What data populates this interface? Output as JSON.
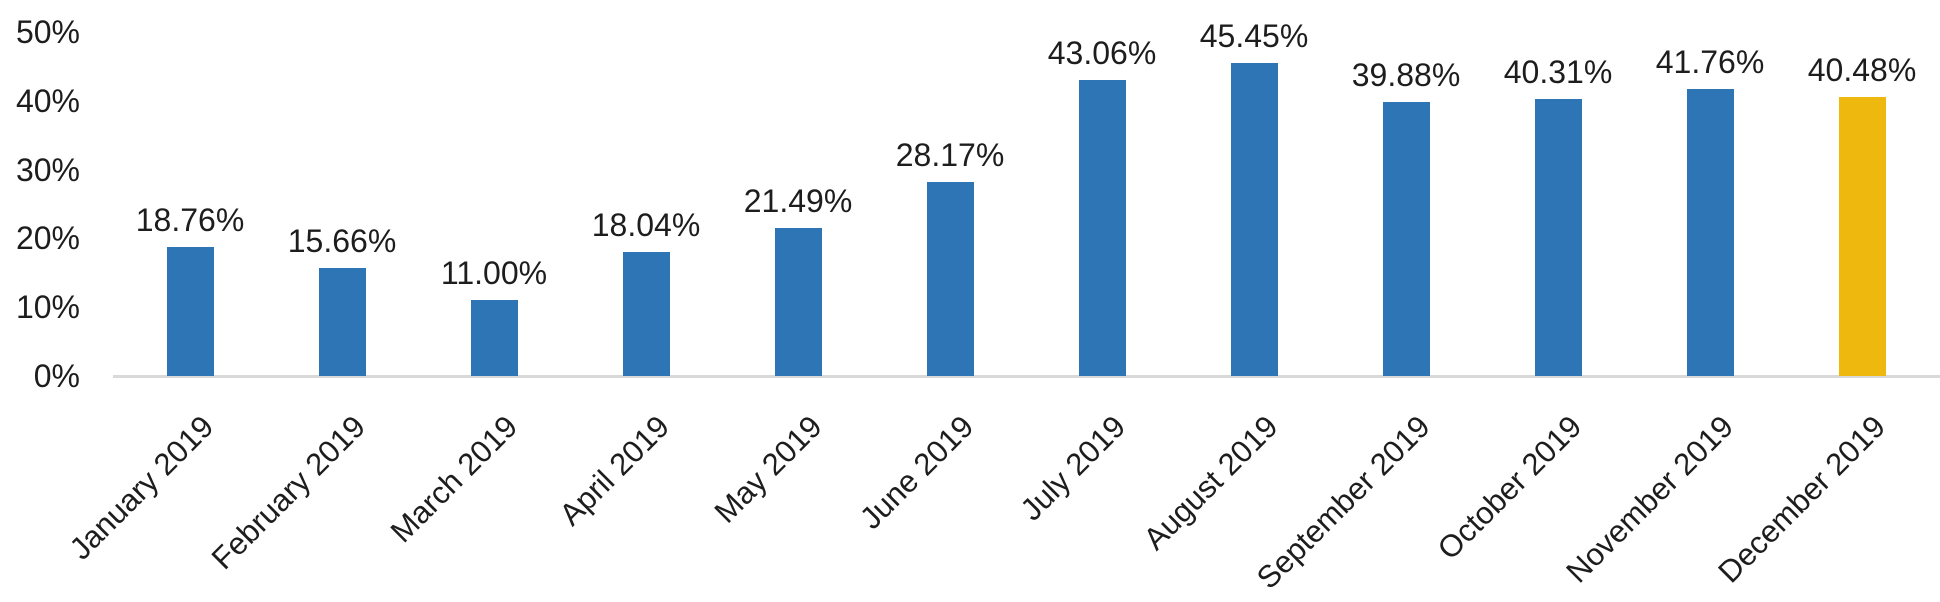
{
  "chart_data": {
    "type": "bar",
    "title": "",
    "xlabel": "",
    "ylabel": "",
    "categories": [
      "January 2019",
      "February 2019",
      "March 2019",
      "April 2019",
      "May 2019",
      "June 2019",
      "July 2019",
      "August 2019",
      "September 2019",
      "October 2019",
      "November 2019",
      "December 2019"
    ],
    "values": [
      18.76,
      15.66,
      11.0,
      18.04,
      21.49,
      28.17,
      43.06,
      45.45,
      39.88,
      40.31,
      41.76,
      40.48
    ],
    "value_labels": [
      "18.76%",
      "15.66%",
      "11.00%",
      "18.04%",
      "21.49%",
      "28.17%",
      "43.06%",
      "45.45%",
      "39.88%",
      "40.31%",
      "41.76%",
      "40.48%"
    ],
    "y_ticks": [
      "0%",
      "10%",
      "20%",
      "30%",
      "40%",
      "50%"
    ],
    "y_tick_values": [
      0,
      10,
      20,
      30,
      40,
      50
    ],
    "ylim": [
      0,
      50
    ],
    "grid": false,
    "legend_position": "none",
    "colors": {
      "bar_default": "#2e75b6",
      "bar_highlight": "#eeb80e",
      "axis_line": "#d9d9d9",
      "text": "#1d1d1d"
    },
    "highlight_index": 11,
    "bar_colors": [
      "#2e75b6",
      "#2e75b6",
      "#2e75b6",
      "#2e75b6",
      "#2e75b6",
      "#2e75b6",
      "#2e75b6",
      "#2e75b6",
      "#2e75b6",
      "#2e75b6",
      "#2e75b6",
      "#eeb80e"
    ]
  }
}
